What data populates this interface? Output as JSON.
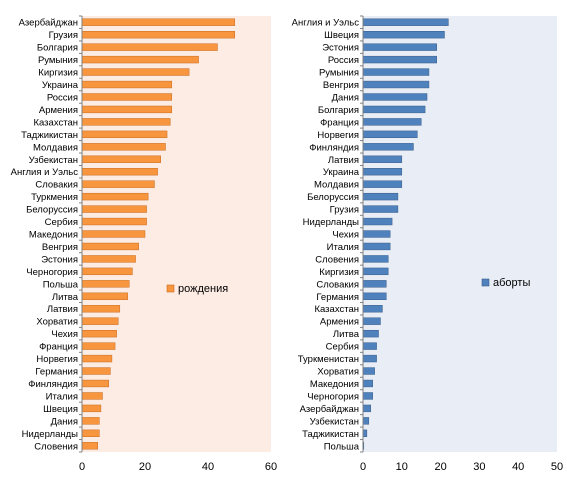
{
  "chart_data": [
    {
      "type": "bar",
      "orientation": "horizontal",
      "categories": [
        "Азербайджан",
        "Грузия",
        "Болгария",
        "Румыния",
        "Киргизия",
        "Украина",
        "Россия",
        "Армения",
        "Казахстан",
        "Таджикистан",
        "Молдавия",
        "Узбекистан",
        "Англия и Уэльс",
        "Словакия",
        "Туркмения",
        "Белоруссия",
        "Сербия",
        "Македония",
        "Венгрия",
        "Эстония",
        "Черногория",
        "Польша",
        "Литва",
        "Латвия",
        "Хорватия",
        "Чехия",
        "Франция",
        "Норвегия",
        "Германия",
        "Финляндия",
        "Италия",
        "Швеция",
        "Дания",
        "Нидерланды",
        "Словения"
      ],
      "series": [
        {
          "name": "рождения",
          "values": [
            48.5,
            48.5,
            43,
            37,
            34,
            28.5,
            28.5,
            28.5,
            28,
            27,
            26.5,
            25,
            24,
            23,
            21,
            20.5,
            20.5,
            20,
            18,
            17,
            16,
            15,
            14.5,
            12,
            11.5,
            11,
            10.5,
            9.5,
            9,
            8.5,
            6.5,
            6,
            5.5,
            5.5,
            5
          ]
        }
      ],
      "xlim": [
        0,
        60
      ],
      "xticks": [
        "0",
        "20",
        "40",
        "60"
      ],
      "legend": "center-right",
      "colors": {
        "bar": "#f7963f",
        "bar_stroke": "#c86b1f",
        "plot_bg": "#fdece4"
      }
    },
    {
      "type": "bar",
      "orientation": "horizontal",
      "categories": [
        "Англия и Уэльс",
        "Швеция",
        "Эстония",
        "Россия",
        "Румыния",
        "Венгрия",
        "Дания",
        "Болгария",
        "Франция",
        "Норвегия",
        "Финляндия",
        "Латвия",
        "Украина",
        "Молдавия",
        "Белоруссия",
        "Грузия",
        "Нидерланды",
        "Чехия",
        "Италия",
        "Словения",
        "Киргизия",
        "Словакия",
        "Германия",
        "Казахстан",
        "Армения",
        "Литва",
        "Сербия",
        "Туркменистан",
        "Хорватия",
        "Македония",
        "Черногория",
        "Азербайджан",
        "Узбекистан",
        "Таджикистан",
        "Польша"
      ],
      "series": [
        {
          "name": "аборты",
          "values": [
            22,
            21,
            19,
            19,
            17,
            17,
            16.5,
            16,
            15,
            14,
            13,
            10,
            10,
            10,
            9,
            9,
            7.5,
            7,
            7,
            6.5,
            6.5,
            6,
            6,
            5,
            4.5,
            4,
            3.5,
            3.5,
            3,
            2.5,
            2.5,
            2,
            1.5,
            1,
            0.2
          ]
        }
      ],
      "xlim": [
        0,
        50
      ],
      "xticks": [
        "0",
        "10",
        "20",
        "30",
        "40",
        "50"
      ],
      "legend": "center-right",
      "colors": {
        "bar": "#4f81bd",
        "bar_stroke": "#385d8a",
        "plot_bg": "#e9eef6"
      }
    }
  ]
}
